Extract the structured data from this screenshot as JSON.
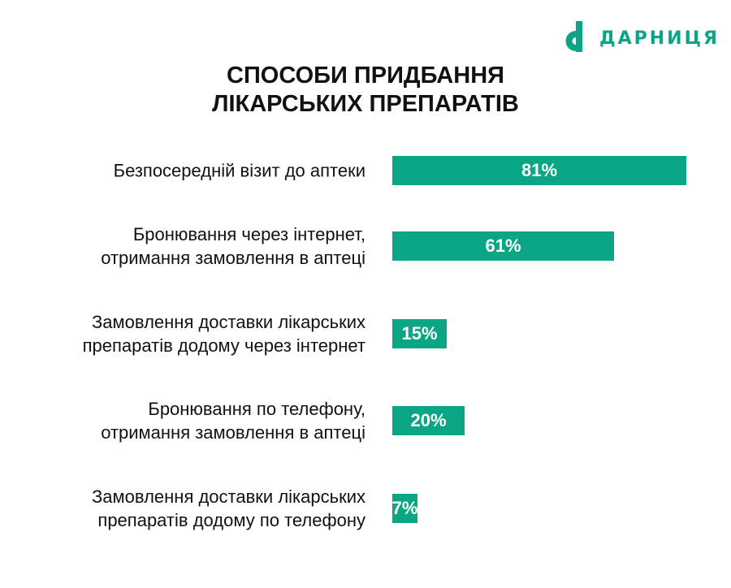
{
  "brand": {
    "name": "ДАРНИЦЯ",
    "color": "#0aa585",
    "logo_icon": "darnitsa-logo-icon"
  },
  "chart_data": {
    "type": "bar",
    "orientation": "horizontal",
    "title_lines": [
      "СПОСОБИ ПРИДБАННЯ",
      "ЛІКАРСЬКИХ ПРЕПАРАТІВ"
    ],
    "categories": [
      [
        "Безпосередній візит до аптеки"
      ],
      [
        "Бронювання через інтернет,",
        "отримання замовлення в аптеці"
      ],
      [
        "Замовлення доставки лікарських",
        "препаратів додому через інтернет"
      ],
      [
        "Бронювання по телефону,",
        "отримання замовлення в аптеці"
      ],
      [
        "Замовлення доставки лікарських",
        "препаратів додому по телефону"
      ]
    ],
    "values": [
      81,
      61,
      15,
      20,
      7
    ],
    "value_labels": [
      "81%",
      "61%",
      "15%",
      "20%",
      "7%"
    ],
    "unit": "%",
    "bar_color": "#0aa585",
    "grid": false,
    "legend": "none"
  }
}
